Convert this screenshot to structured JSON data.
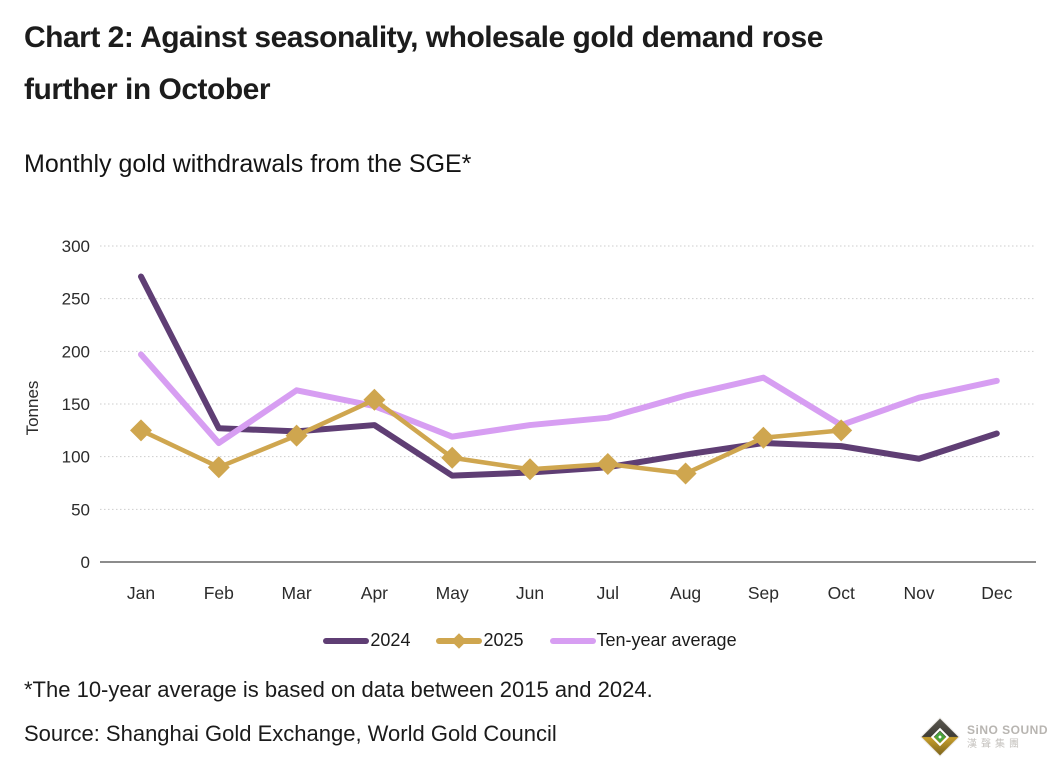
{
  "header": {
    "title": "Chart 2: Against seasonality, wholesale gold demand rose further in October",
    "subtitle": "Monthly gold withdrawals from the SGE*"
  },
  "chart_data": {
    "type": "line",
    "title": "Chart 2: Against seasonality, wholesale gold demand rose further in October",
    "subtitle": "Monthly gold withdrawals from the SGE*",
    "ylabel": "Tonnes",
    "xlabel": "",
    "ylim": [
      0,
      300
    ],
    "yticks": [
      0,
      50,
      100,
      150,
      200,
      250,
      300
    ],
    "grid": "horizontal dotted",
    "legend_position": "bottom",
    "categories": [
      "Jan",
      "Feb",
      "Mar",
      "Apr",
      "May",
      "Jun",
      "Jul",
      "Aug",
      "Sep",
      "Oct",
      "Nov",
      "Dec"
    ],
    "series": [
      {
        "name": "2024",
        "color": "#5f3e74",
        "marker": "none",
        "line_width": 6,
        "values": [
          271,
          127,
          124,
          130,
          82,
          85,
          90,
          102,
          113,
          110,
          98,
          122
        ]
      },
      {
        "name": "2025",
        "color": "#cfa64f",
        "marker": "diamond",
        "line_width": 4.5,
        "values": [
          125,
          90,
          120,
          154,
          99,
          88,
          93,
          84,
          118,
          125,
          null,
          null
        ]
      },
      {
        "name": "Ten-year average",
        "color": "#d79ef2",
        "marker": "none",
        "line_width": 6,
        "values": [
          197,
          113,
          163,
          148,
          119,
          130,
          137,
          158,
          175,
          130,
          156,
          172
        ]
      }
    ]
  },
  "footnote": "*The 10-year average is based on data between 2015 and 2024.",
  "source": "Source: Shanghai Gold Exchange, World Gold Council",
  "logo": {
    "brand": "SiNO SOUND",
    "brand_cn": "漢聲集團"
  }
}
